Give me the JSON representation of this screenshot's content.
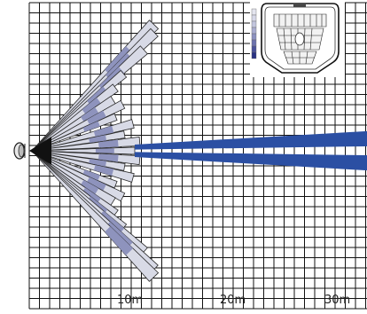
{
  "distance_labels": [
    "10m",
    "20m",
    "30m"
  ],
  "colors": {
    "grid": "#111111",
    "background": "#ffffff",
    "long_range_beam": "#2b4fa3",
    "wide_angle_beam_fill": "#d8dae6",
    "wide_angle_beam_accent": "#8e93bd",
    "wide_angle_beam_outline": "#2a2a2a"
  },
  "icons": [
    "sensor-icon",
    "mirror-preview-icon"
  ]
}
